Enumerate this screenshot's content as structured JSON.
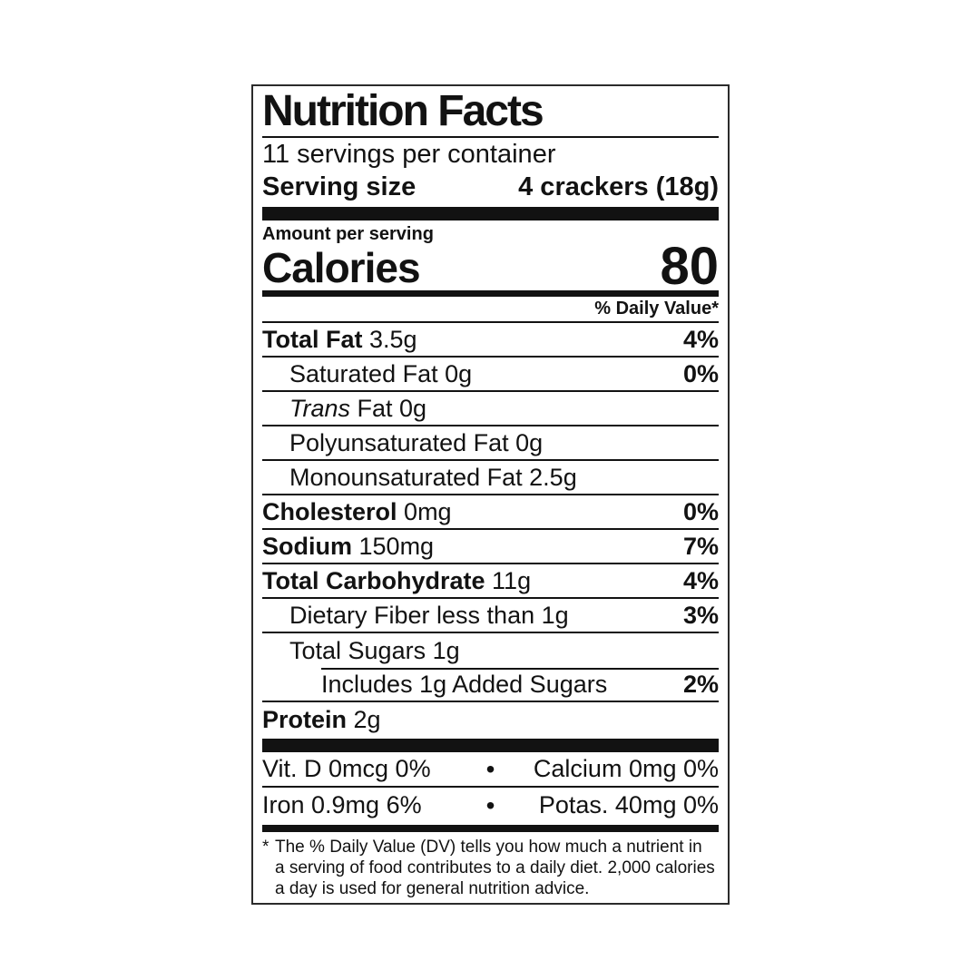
{
  "label": {
    "title": "Nutrition Facts",
    "servings_per_container": "11 servings per container",
    "serving_size": {
      "label": "Serving size",
      "value": "4 crackers (18g)"
    },
    "amount_per_serving": "Amount per serving",
    "calories": {
      "label": "Calories",
      "value": "80"
    },
    "daily_value_header": "% Daily Value*",
    "rows": [
      {
        "strong": "Total Fat",
        "rest": "3.5g",
        "dv": "4%"
      },
      {
        "plain": "Saturated Fat 0g",
        "dv": "0%"
      },
      {
        "italic": "Trans",
        "rest": "Fat 0g",
        "dv": ""
      },
      {
        "plain": "Polyunsaturated Fat 0g",
        "dv": ""
      },
      {
        "plain": "Monounsaturated Fat 2.5g",
        "dv": ""
      },
      {
        "strong": "Cholesterol",
        "rest": "0mg",
        "dv": "0%"
      },
      {
        "strong": "Sodium",
        "rest": "150mg",
        "dv": "7%"
      },
      {
        "strong": "Total Carbohydrate",
        "rest": "11g",
        "dv": "4%"
      },
      {
        "plain": "Dietary Fiber less than 1g",
        "dv": "3%"
      },
      {
        "plain": "Total Sugars 1g",
        "dv": ""
      },
      {
        "plain": "Includes 1g Added Sugars",
        "dv": "2%"
      },
      {
        "strong": "Protein",
        "rest": "2g",
        "dv": ""
      }
    ],
    "micronutrients": {
      "bullet": "•",
      "rows": [
        {
          "left": "Vit. D 0mcg 0%",
          "right": "Calcium 0mg 0%"
        },
        {
          "left": "Iron 0.9mg 6%",
          "right": "Potas. 40mg 0%"
        }
      ]
    },
    "footnote": {
      "marker": "*",
      "lines": [
        "The % Daily Value (DV) tells you how much a nutrient in",
        "a serving of food contributes to a daily diet. 2,000 calories",
        "a day is used for general nutrition advice."
      ]
    },
    "colors": {
      "ink": "#121212",
      "background": "#ffffff"
    }
  }
}
